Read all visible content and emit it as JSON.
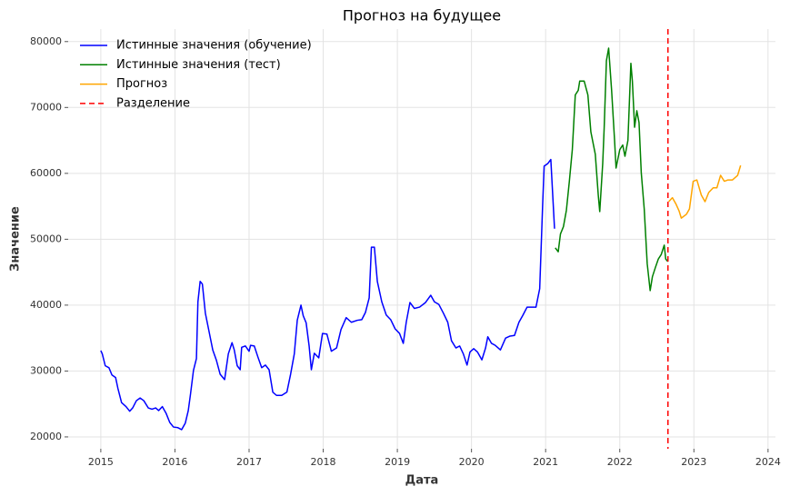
{
  "chart_data": {
    "type": "line",
    "title": "Прогноз на будущее",
    "x_label": "Дата",
    "y_label": "Значение",
    "xlim": [
      2014.56,
      2024.1
    ],
    "xticks": [
      2015,
      2016,
      2017,
      2018,
      2019,
      2020,
      2021,
      2022,
      2023,
      2024
    ],
    "ylim": [
      18200,
      81900
    ],
    "yticks": [
      20000,
      30000,
      40000,
      50000,
      60000,
      70000,
      80000
    ],
    "grid": true,
    "legend": "upper left",
    "series": [
      {
        "name": "Истинные значения (обучение)",
        "color": "blue",
        "x": [
          2015.0,
          2015.02,
          2015.06,
          2015.11,
          2015.15,
          2015.2,
          2015.23,
          2015.28,
          2015.34,
          2015.39,
          2015.43,
          2015.48,
          2015.53,
          2015.58,
          2015.64,
          2015.69,
          2015.74,
          2015.78,
          2015.83,
          2015.88,
          2015.93,
          2015.98,
          2016.04,
          2016.09,
          2016.14,
          2016.18,
          2016.21,
          2016.25,
          2016.29,
          2016.31,
          2016.34,
          2016.37,
          2016.41,
          2016.46,
          2016.51,
          2016.56,
          2016.61,
          2016.67,
          2016.72,
          2016.77,
          2016.8,
          2016.84,
          2016.88,
          2016.9,
          2016.95,
          2017.0,
          2017.02,
          2017.07,
          2017.12,
          2017.17,
          2017.22,
          2017.27,
          2017.32,
          2017.37,
          2017.44,
          2017.51,
          2017.56,
          2017.61,
          2017.65,
          2017.7,
          2017.73,
          2017.77,
          2017.81,
          2017.84,
          2017.88,
          2017.94,
          2017.99,
          2018.05,
          2018.11,
          2018.18,
          2018.24,
          2018.31,
          2018.38,
          2018.46,
          2018.52,
          2018.57,
          2018.62,
          2018.65,
          2018.69,
          2018.73,
          2018.79,
          2018.85,
          2018.91,
          2018.97,
          2019.03,
          2019.08,
          2019.12,
          2019.17,
          2019.23,
          2019.3,
          2019.38,
          2019.45,
          2019.5,
          2019.56,
          2019.62,
          2019.68,
          2019.73,
          2019.79,
          2019.84,
          2019.89,
          2019.94,
          2019.98,
          2020.03,
          2020.08,
          2020.14,
          2020.19,
          2020.22,
          2020.27,
          2020.32,
          2020.39,
          2020.46,
          2020.52,
          2020.58,
          2020.64,
          2020.69,
          2020.75,
          2020.81,
          2020.87,
          2020.92,
          2020.96,
          2020.98,
          2021.03,
          2021.07,
          2021.12
        ],
        "values": [
          33100,
          32600,
          30800,
          30500,
          29400,
          29000,
          27400,
          25200,
          24600,
          23900,
          24400,
          25500,
          25900,
          25500,
          24400,
          24200,
          24400,
          24000,
          24600,
          23600,
          22200,
          21500,
          21400,
          21100,
          22100,
          24000,
          26500,
          30100,
          31900,
          40500,
          43600,
          43200,
          38800,
          36000,
          33200,
          31600,
          29500,
          28700,
          32600,
          34300,
          33200,
          30800,
          30200,
          33600,
          33800,
          33000,
          33900,
          33800,
          32100,
          30500,
          30900,
          30200,
          26800,
          26300,
          26300,
          26800,
          29500,
          32600,
          37700,
          40000,
          38400,
          37300,
          33800,
          30200,
          32700,
          32000,
          35700,
          35600,
          33000,
          33500,
          36300,
          38100,
          37400,
          37700,
          37800,
          38900,
          41100,
          48800,
          48800,
          43600,
          40500,
          38500,
          37800,
          36400,
          35700,
          34200,
          37400,
          40400,
          39500,
          39700,
          40400,
          41500,
          40500,
          40100,
          38800,
          37400,
          34600,
          33500,
          33800,
          32600,
          30900,
          32900,
          33400,
          32900,
          31700,
          33500,
          35200,
          34200,
          33900,
          33200,
          35000,
          35300,
          35400,
          37400,
          38400,
          39700,
          39700,
          39700,
          42500,
          55300,
          61100,
          61500,
          62100,
          51600
        ]
      },
      {
        "name": "Истинные значения (тест)",
        "color": "green",
        "x": [
          2021.13,
          2021.17,
          2021.2,
          2021.24,
          2021.28,
          2021.32,
          2021.36,
          2021.4,
          2021.44,
          2021.46,
          2021.52,
          2021.57,
          2021.61,
          2021.67,
          2021.71,
          2021.73,
          2021.77,
          2021.79,
          2021.82,
          2021.85,
          2021.89,
          2021.93,
          2021.95,
          2022.0,
          2022.04,
          2022.07,
          2022.11,
          2022.15,
          2022.17,
          2022.2,
          2022.23,
          2022.26,
          2022.29,
          2022.33,
          2022.37,
          2022.41,
          2022.44,
          2022.48,
          2022.52,
          2022.56,
          2022.6,
          2022.62,
          2022.65
        ],
        "values": [
          48700,
          48100,
          50800,
          51900,
          54400,
          58800,
          63600,
          71900,
          72600,
          74000,
          74000,
          71900,
          66300,
          62900,
          56700,
          54200,
          61500,
          67000,
          77100,
          79000,
          72600,
          65000,
          60800,
          63600,
          64300,
          62600,
          65000,
          76700,
          74000,
          67000,
          69500,
          67700,
          60100,
          54600,
          46300,
          42200,
          44300,
          45700,
          47000,
          47700,
          49100,
          47000,
          46600
        ]
      },
      {
        "name": "Прогноз",
        "color": "orange",
        "x": [
          2022.66,
          2022.71,
          2022.76,
          2022.8,
          2022.83,
          2022.9,
          2022.94,
          2022.99,
          2023.04,
          2023.1,
          2023.15,
          2023.2,
          2023.26,
          2023.31,
          2023.36,
          2023.41,
          2023.46,
          2023.52,
          2023.59,
          2023.63
        ],
        "values": [
          55700,
          56300,
          55300,
          54300,
          53200,
          53800,
          54600,
          58800,
          59000,
          56700,
          55700,
          57100,
          57800,
          57800,
          59700,
          58800,
          59000,
          59000,
          59700,
          61200
        ]
      }
    ],
    "vline": {
      "name": "Разделение",
      "color": "red",
      "x": 2022.65
    }
  }
}
